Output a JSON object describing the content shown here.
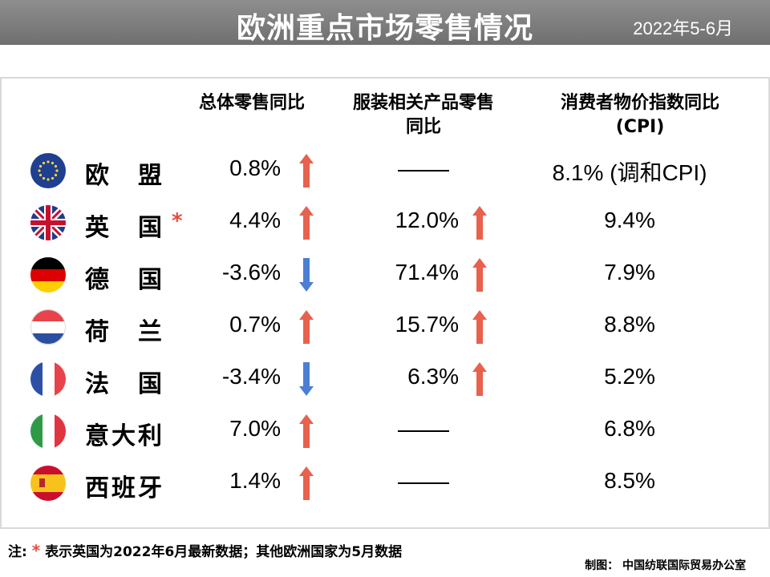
{
  "header": {
    "title": "欧洲重点市场零售情况",
    "date": "2022年5-6月"
  },
  "columns": {
    "total_retail": "总体零售同比",
    "apparel_line1": "服装相关产品零售",
    "apparel_line2": "同比",
    "cpi_line1": "消费者物价指数同比",
    "cpi_line2": "(CPI)"
  },
  "rows": [
    {
      "country": "欧盟",
      "flag": "eu-flag",
      "total": "0.8%",
      "total_dir": "up",
      "apparel": null,
      "apparel_dir": null,
      "cpi": "8.1% (调和CPI)",
      "star": false
    },
    {
      "country": "英国",
      "flag": "uk-flag",
      "total": "4.4%",
      "total_dir": "up",
      "apparel": "12.0%",
      "apparel_dir": "up",
      "cpi": "9.4%",
      "star": true
    },
    {
      "country": "德国",
      "flag": "germany-flag",
      "total": "-3.6%",
      "total_dir": "down",
      "apparel": "71.4%",
      "apparel_dir": "up",
      "cpi": "7.9%",
      "star": false
    },
    {
      "country": "荷兰",
      "flag": "netherlands-flag",
      "total": "0.7%",
      "total_dir": "up",
      "apparel": "15.7%",
      "apparel_dir": "up",
      "cpi": "8.8%",
      "star": false
    },
    {
      "country": "法国",
      "flag": "france-flag",
      "total": "-3.4%",
      "total_dir": "down",
      "apparel": "6.3%",
      "apparel_dir": "up",
      "cpi": "5.2%",
      "star": false
    },
    {
      "country": "意大利",
      "flag": "italy-flag",
      "total": "7.0%",
      "total_dir": "up",
      "apparel": null,
      "apparel_dir": null,
      "cpi": "6.8%",
      "star": false
    },
    {
      "country": "西班牙",
      "flag": "spain-flag",
      "total": "1.4%",
      "total_dir": "up",
      "apparel": null,
      "apparel_dir": null,
      "cpi": "8.5%",
      "star": false
    }
  ],
  "footnote": {
    "prefix": "注:",
    "star": "*",
    "text": "表示英国为2022年6月最新数据；其他欧洲国家为5月数据"
  },
  "credit": "制图： 中国纺联国际贸易办公室",
  "colors": {
    "up_arrow": "#e8614d",
    "down_arrow": "#4a7fd4",
    "header_bg": "#7f7f7f"
  }
}
